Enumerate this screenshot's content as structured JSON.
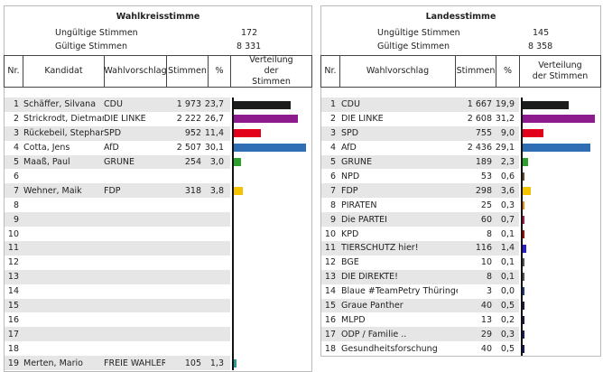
{
  "left": {
    "title": "Wahlkreisstimme",
    "invalid_label": "Ungültige Stimmen",
    "invalid": "172",
    "valid_label": "Gültige Stimmen",
    "valid": "8 331",
    "headers": [
      "Nr.",
      "Kandidat",
      "Wahlvorschlag",
      "Stimmen",
      "%",
      "Verteilung der Stimmen"
    ],
    "rows": [
      {
        "nr": "1",
        "name": "Schäffer, Silvana",
        "party": "CDU",
        "votes": "1 973",
        "pct": "23,7",
        "value": 23.7,
        "color": "#1c1c1c"
      },
      {
        "nr": "2",
        "name": "Strickrodt, Dietmar",
        "party": "DIE LINKE",
        "votes": "2 222",
        "pct": "26,7",
        "value": 26.7,
        "color": "#8e1b8e"
      },
      {
        "nr": "3",
        "name": "Rückebeil, Stephan",
        "party": "SPD",
        "votes": "952",
        "pct": "11,4",
        "value": 11.4,
        "color": "#e3001b"
      },
      {
        "nr": "4",
        "name": "Cotta, Jens",
        "party": "AfD",
        "votes": "2 507",
        "pct": "30,1",
        "value": 30.1,
        "color": "#2f6db5"
      },
      {
        "nr": "5",
        "name": "Maaß, Paul",
        "party": "GRÜNE",
        "votes": "254",
        "pct": "3,0",
        "value": 3.0,
        "color": "#2ca02c"
      },
      {
        "nr": "6",
        "name": "",
        "party": "",
        "votes": "",
        "pct": "",
        "value": 0,
        "color": ""
      },
      {
        "nr": "7",
        "name": "Wehner, Maik",
        "party": "FDP",
        "votes": "318",
        "pct": "3,8",
        "value": 3.8,
        "color": "#f5c400"
      },
      {
        "nr": "8",
        "name": "",
        "party": "",
        "votes": "",
        "pct": "",
        "value": 0,
        "color": ""
      },
      {
        "nr": "9",
        "name": "",
        "party": "",
        "votes": "",
        "pct": "",
        "value": 0,
        "color": ""
      },
      {
        "nr": "10",
        "name": "",
        "party": "",
        "votes": "",
        "pct": "",
        "value": 0,
        "color": ""
      },
      {
        "nr": "11",
        "name": "",
        "party": "",
        "votes": "",
        "pct": "",
        "value": 0,
        "color": ""
      },
      {
        "nr": "12",
        "name": "",
        "party": "",
        "votes": "",
        "pct": "",
        "value": 0,
        "color": ""
      },
      {
        "nr": "13",
        "name": "",
        "party": "",
        "votes": "",
        "pct": "",
        "value": 0,
        "color": ""
      },
      {
        "nr": "14",
        "name": "",
        "party": "",
        "votes": "",
        "pct": "",
        "value": 0,
        "color": ""
      },
      {
        "nr": "15",
        "name": "",
        "party": "",
        "votes": "",
        "pct": "",
        "value": 0,
        "color": ""
      },
      {
        "nr": "16",
        "name": "",
        "party": "",
        "votes": "",
        "pct": "",
        "value": 0,
        "color": ""
      },
      {
        "nr": "17",
        "name": "",
        "party": "",
        "votes": "",
        "pct": "",
        "value": 0,
        "color": ""
      },
      {
        "nr": "18",
        "name": "",
        "party": "",
        "votes": "",
        "pct": "",
        "value": 0,
        "color": ""
      },
      {
        "nr": "19",
        "name": "Merten, Mario",
        "party": "FREIE WÄHLER",
        "votes": "105",
        "pct": "1,3",
        "value": 1.3,
        "color": "#2a9d8f"
      }
    ]
  },
  "right": {
    "title": "Landesstimme",
    "invalid_label": "Ungültige Stimmen",
    "invalid": "145",
    "valid_label": "Gültige Stimmen",
    "valid": "8 358",
    "headers": [
      "Nr.",
      "Wahlvorschlag",
      "Stimmen",
      "%",
      "Verteilung der Stimmen"
    ],
    "rows": [
      {
        "nr": "1",
        "party": "CDU",
        "votes": "1 667",
        "pct": "19,9",
        "value": 19.9,
        "color": "#1c1c1c"
      },
      {
        "nr": "2",
        "party": "DIE LINKE",
        "votes": "2 608",
        "pct": "31,2",
        "value": 31.2,
        "color": "#8e1b8e"
      },
      {
        "nr": "3",
        "party": "SPD",
        "votes": "755",
        "pct": "9,0",
        "value": 9.0,
        "color": "#e3001b"
      },
      {
        "nr": "4",
        "party": "AfD",
        "votes": "2 436",
        "pct": "29,1",
        "value": 29.1,
        "color": "#2f6db5"
      },
      {
        "nr": "5",
        "party": "GRÜNE",
        "votes": "189",
        "pct": "2,3",
        "value": 2.3,
        "color": "#2ca02c"
      },
      {
        "nr": "6",
        "party": "NPD",
        "votes": "53",
        "pct": "0,6",
        "value": 0.6,
        "color": "#6b4a2a"
      },
      {
        "nr": "7",
        "party": "FDP",
        "votes": "298",
        "pct": "3,6",
        "value": 3.6,
        "color": "#f5c400"
      },
      {
        "nr": "8",
        "party": "PIRATEN",
        "votes": "25",
        "pct": "0,3",
        "value": 0.3,
        "color": "#f28c00"
      },
      {
        "nr": "9",
        "party": "Die PARTEI",
        "votes": "60",
        "pct": "0,7",
        "value": 0.7,
        "color": "#b5174b"
      },
      {
        "nr": "10",
        "party": "KPD",
        "votes": "8",
        "pct": "0,1",
        "value": 0.1,
        "color": "#c00000"
      },
      {
        "nr": "11",
        "party": "TIERSCHUTZ hier!",
        "votes": "116",
        "pct": "1,4",
        "value": 1.4,
        "color": "#2a1fd0"
      },
      {
        "nr": "12",
        "party": "BGE",
        "votes": "10",
        "pct": "0,1",
        "value": 0.1,
        "color": "#555555"
      },
      {
        "nr": "13",
        "party": "DIE DIREKTE!",
        "votes": "8",
        "pct": "0,1",
        "value": 0.1,
        "color": "#555555"
      },
      {
        "nr": "14",
        "party": "Blaue #TeamPetry Thüringen",
        "votes": "3",
        "pct": "0,0",
        "value": 0.0,
        "color": "#1f3a8a"
      },
      {
        "nr": "15",
        "party": "Graue Panther",
        "votes": "40",
        "pct": "0,5",
        "value": 0.5,
        "color": "#1a1a4a"
      },
      {
        "nr": "16",
        "party": "MLPD",
        "votes": "13",
        "pct": "0,2",
        "value": 0.2,
        "color": "#1a1a4a"
      },
      {
        "nr": "17",
        "party": "ÖDP / Familie ..",
        "votes": "29",
        "pct": "0,3",
        "value": 0.3,
        "color": "#1a1a6a"
      },
      {
        "nr": "18",
        "party": "Gesundheitsforschung",
        "votes": "40",
        "pct": "0,5",
        "value": 0.5,
        "color": "#1a1a6a"
      }
    ]
  }
}
